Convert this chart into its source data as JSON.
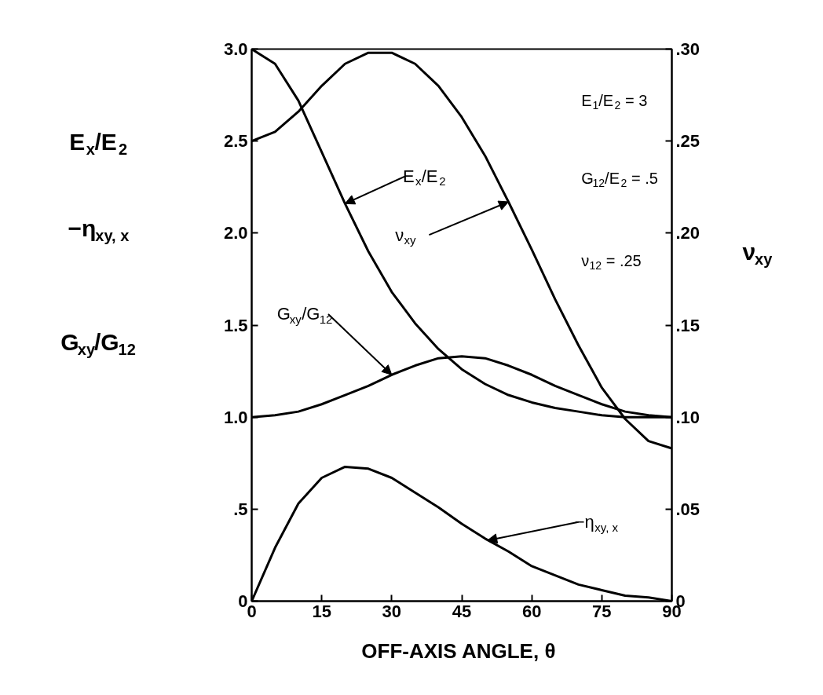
{
  "chart_data": {
    "type": "line",
    "xlabel": "OFF-AXIS  ANGLE, θ",
    "ylabel": [
      "E$_{x}$/E$_{2}$",
      "−η$_{xy, x}$",
      "G$_{xy}$/G$_{12}$"
    ],
    "y2label": "ν$_{xy}$",
    "x": [
      0,
      5,
      10,
      15,
      20,
      25,
      30,
      35,
      40,
      45,
      50,
      55,
      60,
      65,
      70,
      75,
      80,
      85,
      90
    ],
    "series": [
      {
        "color": "#000000",
        "values": [
          3.0,
          2.92,
          2.72,
          2.44,
          2.16,
          1.9,
          1.68,
          1.51,
          1.37,
          1.26,
          1.18,
          1.12,
          1.08,
          1.05,
          1.03,
          1.01,
          1.0,
          1.0,
          1.0
        ]
      },
      {
        "color": "#000000",
        "values": [
          1.0,
          1.01,
          1.03,
          1.07,
          1.12,
          1.17,
          1.23,
          1.28,
          1.32,
          1.33,
          1.32,
          1.28,
          1.23,
          1.17,
          1.12,
          1.07,
          1.03,
          1.01,
          1.0
        ]
      },
      {
        "color": "#000000",
        "values": [
          0.0,
          0.29,
          0.53,
          0.67,
          0.73,
          0.72,
          0.67,
          0.59,
          0.51,
          0.42,
          0.34,
          0.27,
          0.19,
          0.14,
          0.09,
          0.06,
          0.03,
          0.02,
          0.0
        ]
      },
      {
        "color": "#000000",
        "axis": "y2",
        "values": [
          0.25,
          0.255,
          0.266,
          0.28,
          0.292,
          0.298,
          0.298,
          0.292,
          0.28,
          0.263,
          0.242,
          0.217,
          0.191,
          0.164,
          0.139,
          0.116,
          0.099,
          0.087,
          0.083
        ]
      }
    ],
    "xlim": [
      0,
      90
    ],
    "xticks": [
      0,
      15,
      30,
      45,
      60,
      75,
      90
    ],
    "ylim": [
      0,
      3.0
    ],
    "yticks": [
      0,
      {
        "value": 0.5,
        "label": ".5"
      },
      {
        "value": 1.0,
        "label": "1.0"
      },
      {
        "value": 1.5,
        "label": "1.5"
      },
      {
        "value": 2.0,
        "label": "2.0"
      },
      {
        "value": 2.5,
        "label": "2.5"
      },
      {
        "value": 3.0,
        "label": "3.0"
      }
    ],
    "y2lim": [
      0,
      0.3
    ],
    "y2ticks": [
      0,
      {
        "value": 0.05,
        "label": ".05"
      },
      {
        "value": 0.1,
        "label": ".10"
      },
      {
        "value": 0.15,
        "label": ".15"
      },
      {
        "value": 0.2,
        "label": ".20"
      },
      {
        "value": 0.25,
        "label": ".25"
      },
      {
        "value": 0.3,
        "label": ".30"
      }
    ],
    "grid": false,
    "marker": "none",
    "line_style": "solid",
    "annotations": [
      {
        "text": "E$_{x}$/E$_{2}$",
        "x": 20,
        "y": 2.16
      },
      {
        "text": "ν$_{xy}$",
        "x": 55,
        "y": 2.17
      },
      {
        "text": "G$_{xy}$/G$_{12}$",
        "x": 30,
        "y": 1.23
      },
      {
        "text": "−η$_{xy, x}$",
        "x": 50.5,
        "y": 0.33
      },
      "E$_{1}$/E$_{2}$ = 3",
      "G$_{12}$/E$_{2}$ = .5",
      "ν$_{12}$ = .25"
    ]
  }
}
